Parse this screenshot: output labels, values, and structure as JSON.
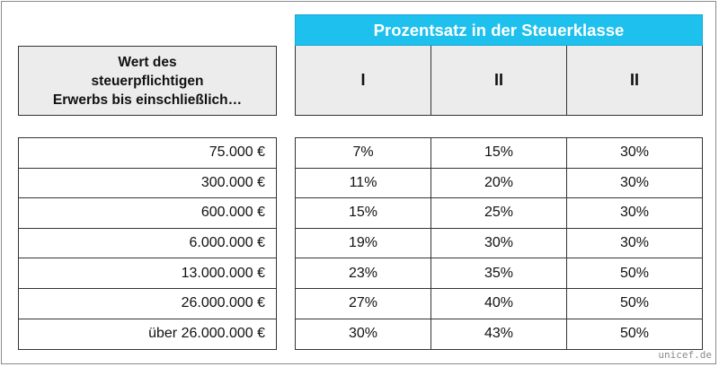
{
  "left_header": {
    "lines": [
      "Wert des",
      "steuerpflichtigen",
      "Erwerbs bis einschließlich…"
    ]
  },
  "right_header": {
    "title": "Prozentsatz in der Steuerklasse",
    "classes": [
      "I",
      "II",
      "II"
    ]
  },
  "rows": [
    {
      "value": "75.000 €",
      "rates": [
        "7%",
        "15%",
        "30%"
      ]
    },
    {
      "value": "300.000 €",
      "rates": [
        "11%",
        "20%",
        "30%"
      ]
    },
    {
      "value": "600.000 €",
      "rates": [
        "15%",
        "25%",
        "30%"
      ]
    },
    {
      "value": "6.000.000 €",
      "rates": [
        "19%",
        "30%",
        "30%"
      ]
    },
    {
      "value": "13.000.000 €",
      "rates": [
        "23%",
        "35%",
        "50%"
      ]
    },
    {
      "value": "26.000.000 €",
      "rates": [
        "27%",
        "40%",
        "50%"
      ]
    },
    {
      "value": "über 26.000.000 €",
      "rates": [
        "30%",
        "43%",
        "50%"
      ]
    }
  ],
  "watermark": "unicef.de",
  "colors": {
    "header_blue": "#1ec0ee",
    "header_grey": "#ececec"
  }
}
